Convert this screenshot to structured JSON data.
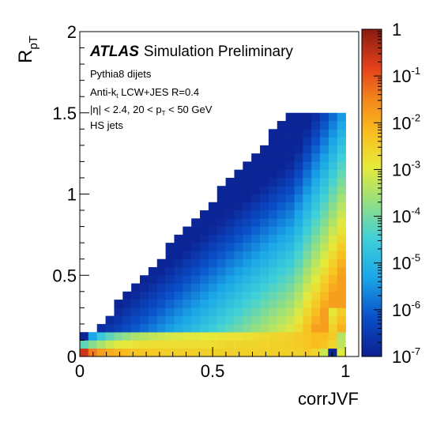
{
  "chart_data": {
    "type": "heatmap",
    "title": "",
    "xlabel": "corrJVF",
    "ylabel_main": "R",
    "ylabel_sub": "pT",
    "xlim": [
      0,
      1.05
    ],
    "ylim": [
      0,
      2
    ],
    "x_ticks": [
      {
        "value": 0,
        "label": "0"
      },
      {
        "value": 0.5,
        "label": "0.5"
      },
      {
        "value": 1,
        "label": "1"
      }
    ],
    "y_ticks": [
      {
        "value": 0,
        "label": "0"
      },
      {
        "value": 0.5,
        "label": "0.5"
      },
      {
        "value": 1,
        "label": "1"
      },
      {
        "value": 1.5,
        "label": "1.5"
      },
      {
        "value": 2,
        "label": "2"
      }
    ],
    "colorbar": {
      "scale": "log",
      "range": [
        1e-07,
        1
      ],
      "ticks": [
        {
          "exp": 0,
          "label": "1"
        },
        {
          "exp": -1,
          "label": "10",
          "sup": "-1"
        },
        {
          "exp": -2,
          "label": "10",
          "sup": "-2"
        },
        {
          "exp": -3,
          "label": "10",
          "sup": "-3"
        },
        {
          "exp": -4,
          "label": "10",
          "sup": "-4"
        },
        {
          "exp": -5,
          "label": "10",
          "sup": "-5"
        },
        {
          "exp": -6,
          "label": "10",
          "sup": "-6"
        },
        {
          "exp": -7,
          "label": "10",
          "sup": "-7"
        }
      ]
    },
    "annotations": {
      "atlas": "ATLAS",
      "atlas_suffix": "Simulation Preliminary",
      "line1": "Pythia8 dijets",
      "line2_pre": "Anti-k",
      "line2_sub": "t",
      "line2_post": " LCW+JES R=0.4",
      "line3_pre": "|η| < 2.4, 20 < p",
      "line3_sub": "T",
      "line3_post": " < 50 GeV",
      "line4": "HS jets"
    },
    "bins": {
      "x_width": 0.0323,
      "y_width": 0.05
    },
    "cells": [
      [
        0.0,
        0.0,
        -0.6
      ],
      [
        0.032,
        0.0,
        -1.4
      ],
      [
        0.065,
        0.0,
        -1.8
      ],
      [
        0.097,
        0.0,
        -2.0
      ],
      [
        0.129,
        0.0,
        -2.1
      ],
      [
        0.161,
        0.0,
        -2.2
      ],
      [
        0.194,
        0.0,
        -2.3
      ],
      [
        0.226,
        0.0,
        -2.35
      ],
      [
        0.258,
        0.0,
        -2.4
      ],
      [
        0.29,
        0.0,
        -2.45
      ],
      [
        0.323,
        0.0,
        -2.5
      ],
      [
        0.355,
        0.0,
        -2.5
      ],
      [
        0.387,
        0.0,
        -2.5
      ],
      [
        0.419,
        0.0,
        -2.5
      ],
      [
        0.452,
        0.0,
        -2.5
      ],
      [
        0.484,
        0.0,
        -2.5
      ],
      [
        0.516,
        0.0,
        -2.5
      ],
      [
        0.548,
        0.0,
        -2.5
      ],
      [
        0.581,
        0.0,
        -2.5
      ],
      [
        0.613,
        0.0,
        -2.5
      ],
      [
        0.645,
        0.0,
        -2.5
      ],
      [
        0.677,
        0.0,
        -2.5
      ],
      [
        0.71,
        0.0,
        -2.5
      ],
      [
        0.742,
        0.0,
        -2.5
      ],
      [
        0.774,
        0.0,
        -2.5
      ],
      [
        0.806,
        0.0,
        -2.5
      ],
      [
        0.839,
        0.0,
        -2.4
      ],
      [
        0.871,
        0.0,
        -2.6
      ],
      [
        0.903,
        0.0,
        -3.2
      ],
      [
        0.935,
        0.0,
        -6.9
      ],
      [
        0.968,
        0.0,
        -3.0
      ],
      [
        0.0,
        0.05,
        -4.2
      ],
      [
        0.032,
        0.05,
        -3.8
      ],
      [
        0.065,
        0.05,
        -3.5
      ],
      [
        0.097,
        0.05,
        -3.2
      ],
      [
        0.129,
        0.05,
        -3.0
      ],
      [
        0.161,
        0.05,
        -2.9
      ],
      [
        0.194,
        0.05,
        -2.8
      ],
      [
        0.226,
        0.05,
        -2.75
      ],
      [
        0.258,
        0.05,
        -2.7
      ],
      [
        0.29,
        0.05,
        -2.7
      ],
      [
        0.323,
        0.05,
        -2.7
      ],
      [
        0.355,
        0.05,
        -2.7
      ],
      [
        0.387,
        0.05,
        -2.7
      ],
      [
        0.419,
        0.05,
        -2.7
      ],
      [
        0.452,
        0.05,
        -2.7
      ],
      [
        0.484,
        0.05,
        -2.7
      ],
      [
        0.516,
        0.05,
        -2.65
      ],
      [
        0.548,
        0.05,
        -2.6
      ],
      [
        0.581,
        0.05,
        -2.6
      ],
      [
        0.613,
        0.05,
        -2.6
      ],
      [
        0.645,
        0.05,
        -2.6
      ],
      [
        0.677,
        0.05,
        -2.55
      ],
      [
        0.71,
        0.05,
        -2.5
      ],
      [
        0.742,
        0.05,
        -2.5
      ],
      [
        0.774,
        0.05,
        -2.45
      ],
      [
        0.806,
        0.05,
        -2.4
      ],
      [
        0.839,
        0.05,
        -2.3
      ],
      [
        0.871,
        0.05,
        -2.2
      ],
      [
        0.903,
        0.05,
        -2.3
      ],
      [
        0.935,
        0.05,
        -2.6
      ],
      [
        0.968,
        0.05,
        -3.3
      ],
      [
        0.0,
        0.1,
        -6.9
      ],
      [
        0.032,
        0.1,
        -5.3
      ],
      [
        0.065,
        0.1,
        -4.6
      ],
      [
        0.097,
        0.1,
        -4.2
      ],
      [
        0.129,
        0.1,
        -3.9
      ],
      [
        0.161,
        0.1,
        -3.7
      ],
      [
        0.194,
        0.1,
        -3.5
      ],
      [
        0.226,
        0.1,
        -3.4
      ],
      [
        0.258,
        0.1,
        -3.3
      ],
      [
        0.29,
        0.1,
        -3.2
      ],
      [
        0.323,
        0.1,
        -3.1
      ],
      [
        0.355,
        0.1,
        -3.05
      ],
      [
        0.387,
        0.1,
        -3.0
      ],
      [
        0.419,
        0.1,
        -3.0
      ],
      [
        0.452,
        0.1,
        -2.95
      ],
      [
        0.484,
        0.1,
        -2.9
      ],
      [
        0.516,
        0.1,
        -2.85
      ],
      [
        0.548,
        0.1,
        -2.8
      ],
      [
        0.581,
        0.1,
        -2.8
      ],
      [
        0.613,
        0.1,
        -2.75
      ],
      [
        0.645,
        0.1,
        -2.7
      ],
      [
        0.677,
        0.1,
        -2.65
      ],
      [
        0.71,
        0.1,
        -2.6
      ],
      [
        0.742,
        0.1,
        -2.55
      ],
      [
        0.774,
        0.1,
        -2.5
      ],
      [
        0.806,
        0.1,
        -2.4
      ],
      [
        0.839,
        0.1,
        -2.3
      ],
      [
        0.871,
        0.1,
        -2.2
      ],
      [
        0.903,
        0.1,
        -2.2
      ],
      [
        0.935,
        0.1,
        -2.4
      ],
      [
        0.968,
        0.1,
        -3.4
      ]
    ]
  }
}
